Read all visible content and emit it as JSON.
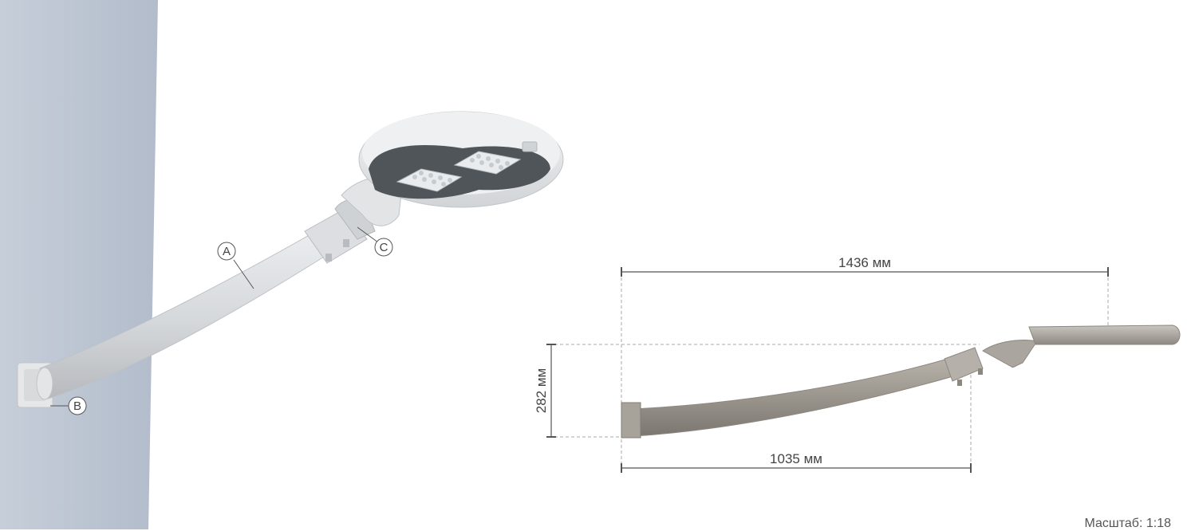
{
  "callouts": {
    "a": "A",
    "b": "B",
    "c": "C"
  },
  "dimensions": {
    "total_length": "1436 мм",
    "arm_length": "1035 мм",
    "height": "282 мм"
  },
  "scale_note": "Масштаб: 1:18",
  "colors": {
    "wall": "#bcc6d3",
    "bracket_3d": "#d9dbde",
    "led_panel": "#4f5559",
    "bracket_side": "#9c9790",
    "dimension_line": "#555555",
    "guide_line": "#aaaaaa"
  }
}
